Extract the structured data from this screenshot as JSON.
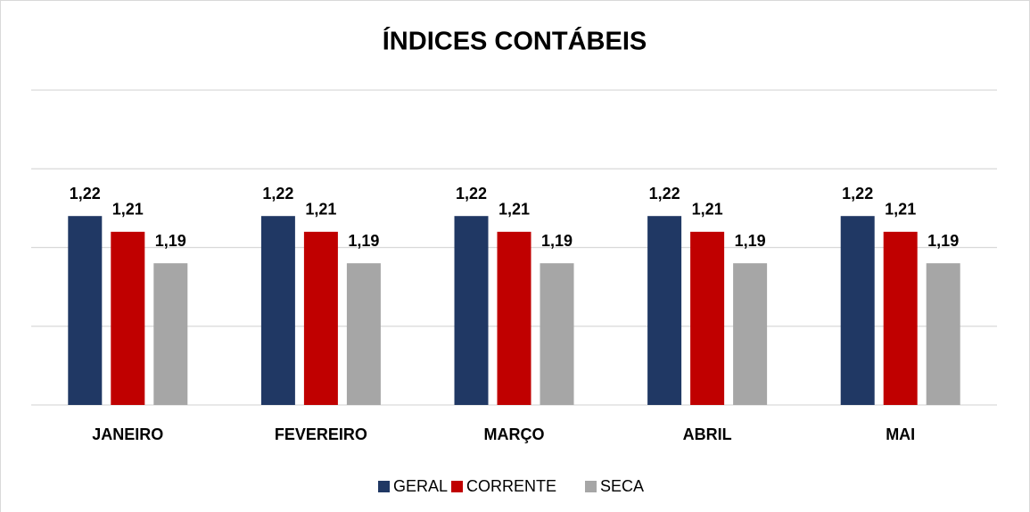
{
  "chart_data": {
    "type": "bar",
    "title": "ÍNDICES CONTÁBEIS",
    "categories": [
      "JANEIRO",
      "FEVEREIRO",
      "MARÇO",
      "ABRIL",
      "MAI"
    ],
    "series": [
      {
        "name": "GERAL",
        "color": "#203864",
        "values": [
          1.22,
          1.22,
          1.22,
          1.22,
          1.22
        ],
        "value_labels": [
          "1,22",
          "1,22",
          "1,22",
          "1,22",
          "1,22"
        ]
      },
      {
        "name": "CORRENTE",
        "color": "#c00000",
        "values": [
          1.21,
          1.21,
          1.21,
          1.21,
          1.21
        ],
        "value_labels": [
          "1,21",
          "1,21",
          "1,21",
          "1,21",
          "1,21"
        ]
      },
      {
        "name": "SECA",
        "color": "#a6a6a6",
        "values": [
          1.19,
          1.19,
          1.19,
          1.19,
          1.19
        ],
        "value_labels": [
          "1,19",
          "1,19",
          "1,19",
          "1,19",
          "1,19"
        ]
      }
    ],
    "ylim": [
      1.1,
      1.3
    ],
    "yticks": [
      1.1,
      1.15,
      1.2,
      1.25,
      1.3
    ],
    "grid": true,
    "tick_labels": false,
    "legend": "bottom"
  }
}
